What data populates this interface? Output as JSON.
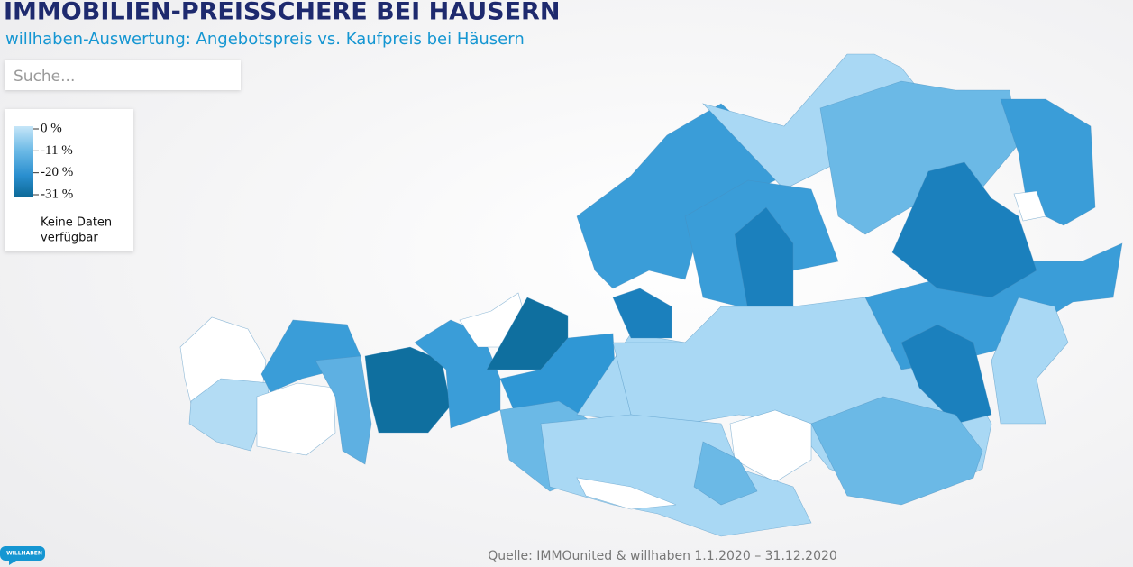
{
  "header": {
    "title": "IMMOBILIEN-PREISSCHERE BEI HÄUSERN",
    "subtitle": "willhaben-Auswertung: Angebotspreis vs. Kaufpreis bei Häusern"
  },
  "search": {
    "placeholder": "Suche..."
  },
  "legend": {
    "labels": [
      "0 %",
      "-11 %",
      "-20 %",
      "-31 %"
    ],
    "no_data": [
      "Keine Daten",
      "verfügbar"
    ]
  },
  "source": "Quelle: IMMOunited & willhaben 1.1.2020 – 31.12.2020",
  "logo": "WILLHABEN"
}
